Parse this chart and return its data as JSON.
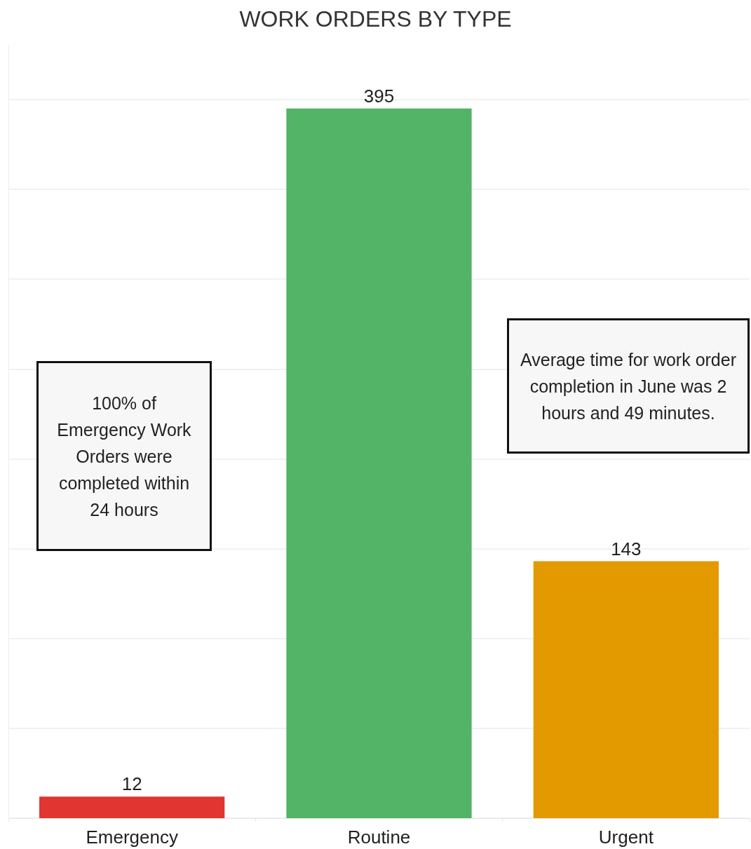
{
  "chart_data": {
    "type": "bar",
    "title": "WORK ORDERS BY TYPE",
    "categories": [
      "Emergency",
      "Routine",
      "Urgent"
    ],
    "values": [
      12,
      395,
      143
    ],
    "colors": [
      "#e03531",
      "#53b366",
      "#e39a00"
    ],
    "ylim": [
      0,
      430
    ],
    "yticks": [
      {
        "value": 0,
        "label": null
      },
      {
        "value": 50,
        "label": null
      },
      {
        "value": 100,
        "label": null
      },
      {
        "value": 150,
        "label": null
      },
      {
        "value": 200,
        "label": null
      },
      {
        "value": 250,
        "label": null
      },
      {
        "value": 300,
        "label": null
      },
      {
        "value": 350,
        "label": null
      },
      {
        "value": 400,
        "label": null
      }
    ],
    "grid": "y",
    "tick_labels": "x",
    "data_labels": true,
    "annotations": [
      "100% of Emergency Work Orders were completed within 24 hours",
      "Average time for work order completion in June was 2 hours and 49 minutes."
    ]
  }
}
